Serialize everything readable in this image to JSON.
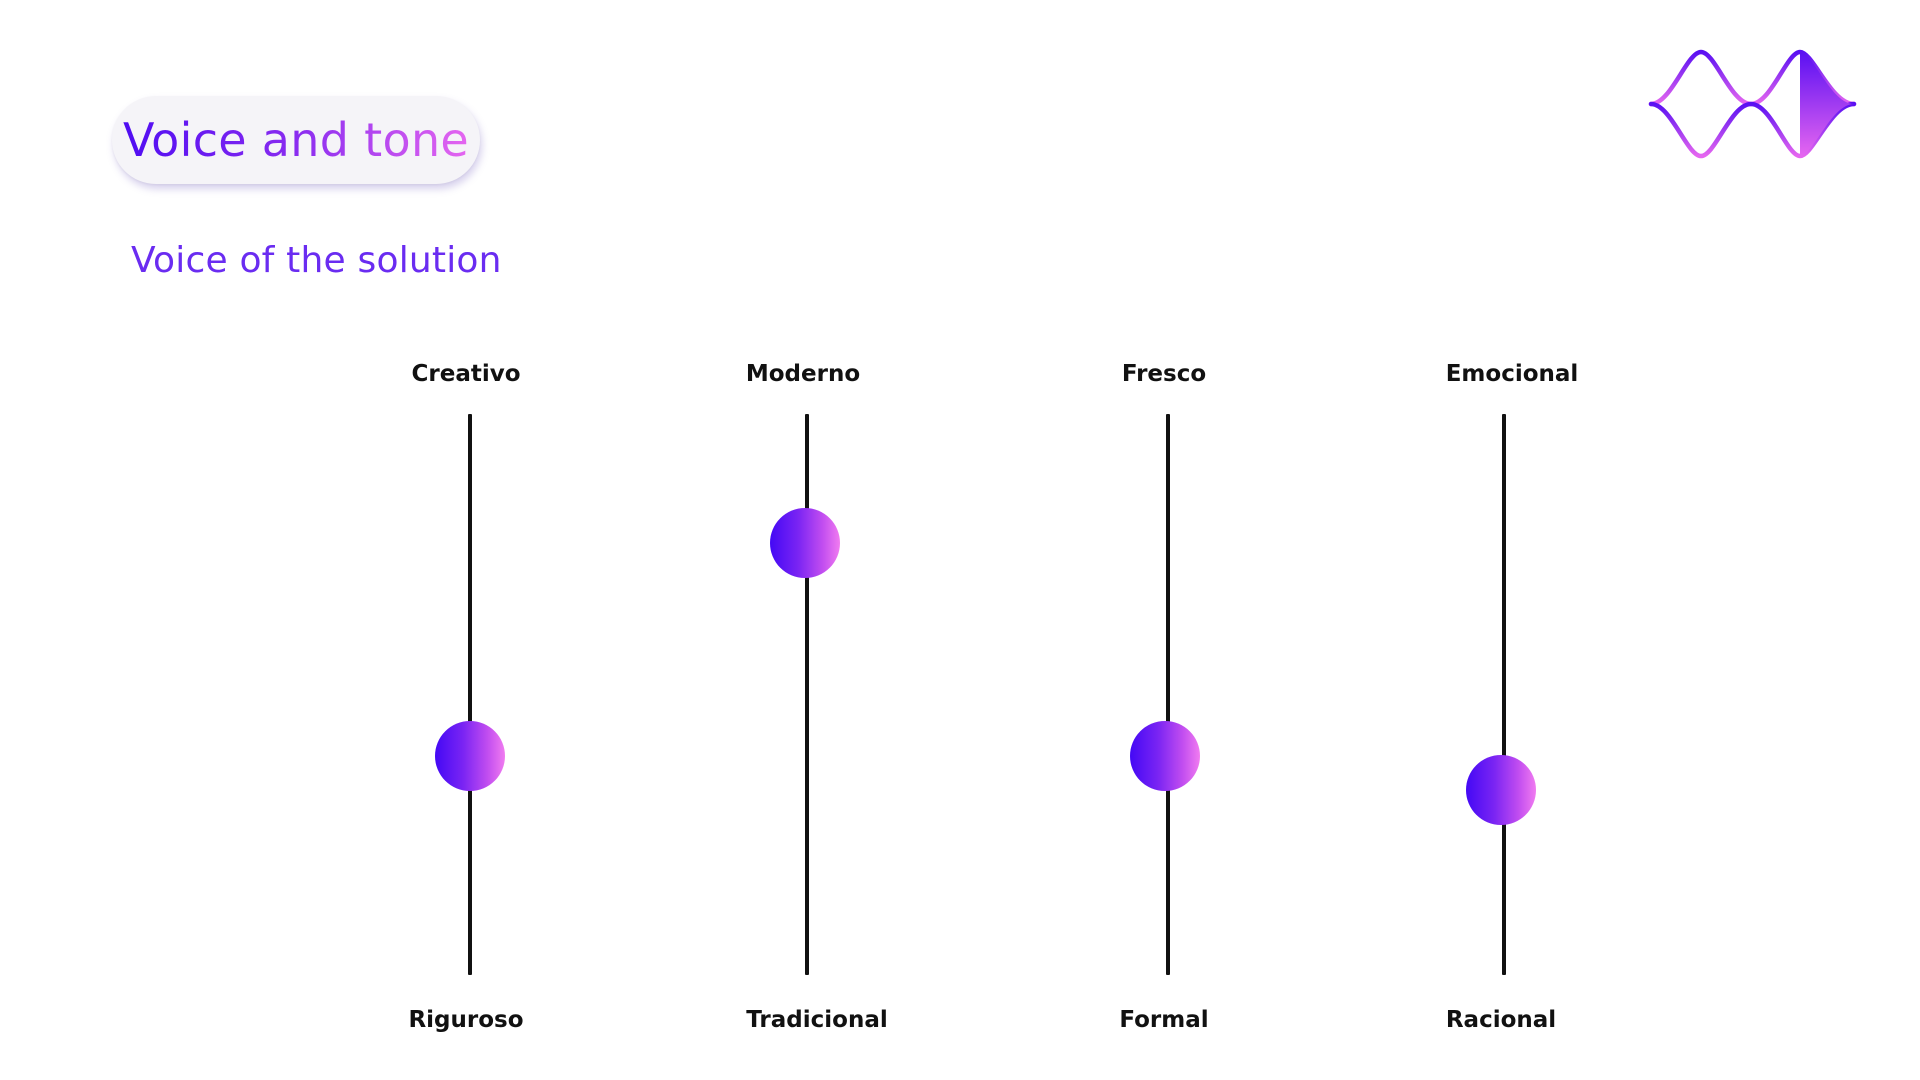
{
  "header": {
    "title": "Voice and tone",
    "subtitle": "Voice of the solution"
  },
  "logo": {
    "icon": "brand-wave-diamond-logo",
    "colors": [
      "#4f0cf2",
      "#8a2cf0",
      "#e566f0"
    ]
  },
  "sliders": [
    {
      "top_label": "Creativo",
      "bottom_label": "Riguroso",
      "level": 0.39
    },
    {
      "top_label": "Moderno",
      "bottom_label": "Tradicional",
      "level": 0.77
    },
    {
      "top_label": "Fresco",
      "bottom_label": "Formal",
      "level": 0.39
    },
    {
      "top_label": "Emocional",
      "bottom_label": "Racional",
      "level": 0.33
    }
  ],
  "colors": {
    "accent": "#6a2cf1",
    "gradient_start": "#4309f5",
    "gradient_end": "#f17cf0",
    "track": "#111111",
    "pill_background": "#f5f4f8"
  }
}
